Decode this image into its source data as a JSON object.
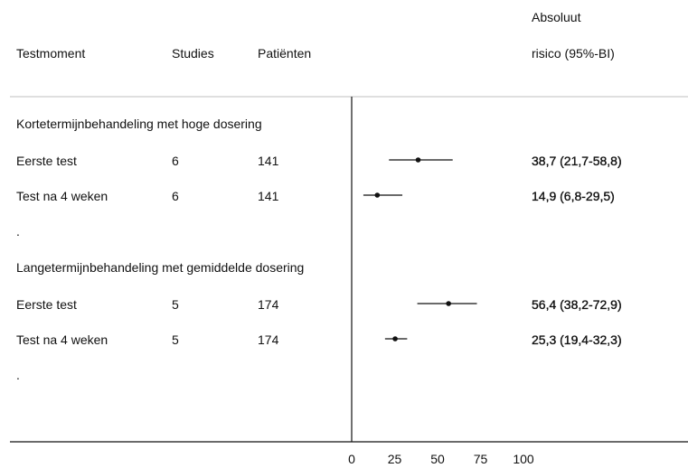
{
  "header": {
    "col_testmoment": "Testmoment",
    "col_studies": "Studies",
    "col_patients": "Patiënten",
    "col_risk_line1": "Absoluut",
    "col_risk_line2": "risico (95%-BI)"
  },
  "chart_data": {
    "type": "forest",
    "xlim": [
      0,
      100
    ],
    "x_ticks": [
      "0",
      "25",
      "50",
      "75",
      "100"
    ],
    "groups": [
      {
        "title": "Kortetermijnbehandeling met hoge dosering",
        "rows": [
          {
            "label": "Eerste test",
            "studies": "6",
            "patients": "141",
            "estimate": 38.7,
            "lower": 21.7,
            "upper": 58.8,
            "ci_text": "38,7 (21,7-58,8)"
          },
          {
            "label": "Test na 4 weken",
            "studies": "6",
            "patients": "141",
            "estimate": 14.9,
            "lower": 6.8,
            "upper": 29.5,
            "ci_text": "14,9 (6,8-29,5)"
          }
        ],
        "spacer": "."
      },
      {
        "title": "Langetermijnbehandeling met gemiddelde dosering",
        "rows": [
          {
            "label": "Eerste test",
            "studies": "5",
            "patients": "174",
            "estimate": 56.4,
            "lower": 38.2,
            "upper": 72.9,
            "ci_text": "56,4 (38,2-72,9)"
          },
          {
            "label": "Test na 4 weken",
            "studies": "5",
            "patients": "174",
            "estimate": 25.3,
            "lower": 19.4,
            "upper": 32.3,
            "ci_text": "25,3 (19,4-32,3)"
          }
        ],
        "spacer": "."
      }
    ]
  }
}
